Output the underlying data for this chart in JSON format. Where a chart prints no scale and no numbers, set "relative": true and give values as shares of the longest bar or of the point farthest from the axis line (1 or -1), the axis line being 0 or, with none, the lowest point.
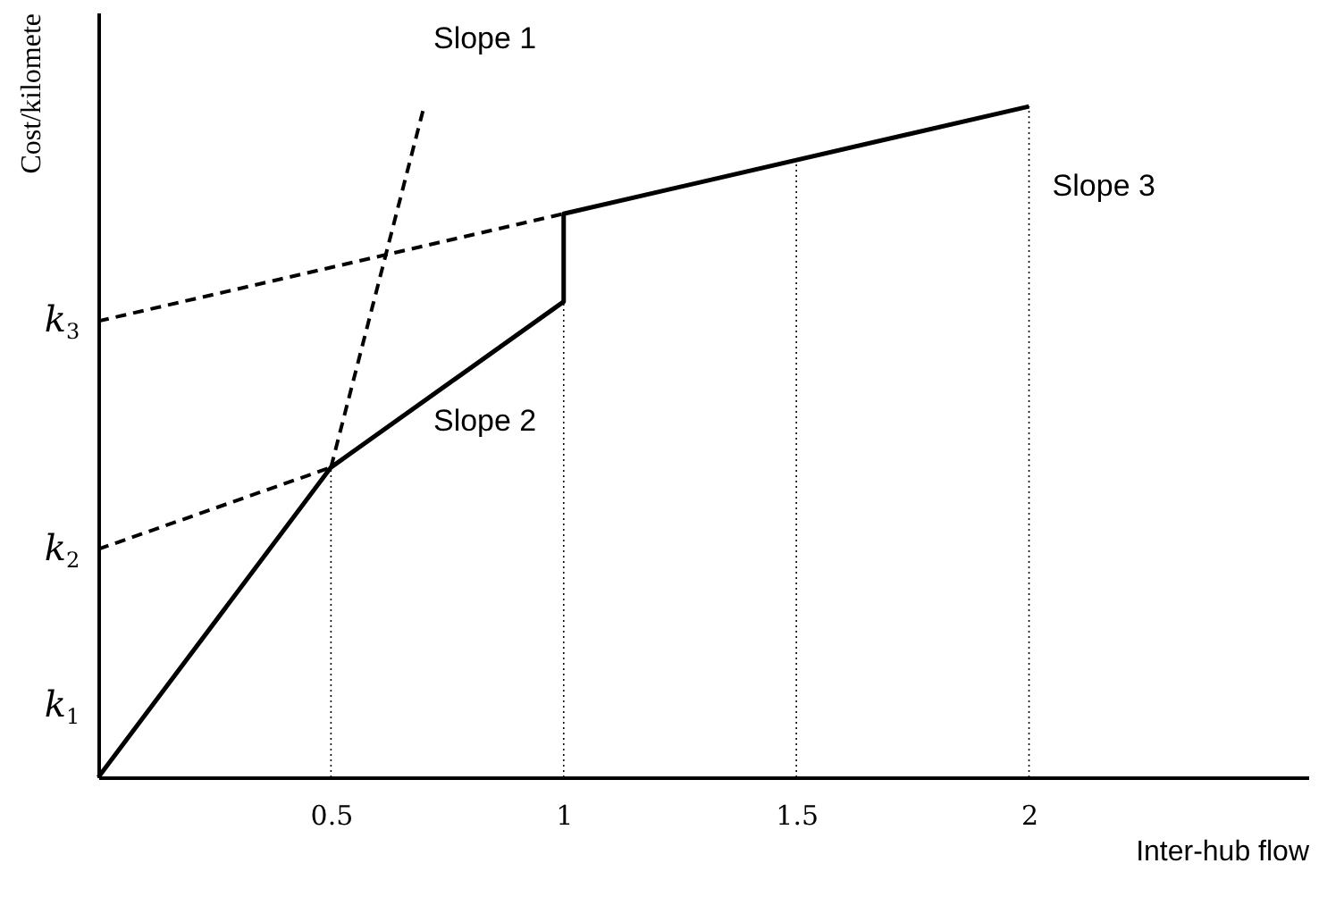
{
  "chart_data": {
    "type": "line",
    "relative": true,
    "xlabel": "Inter-hub flow",
    "ylabel": "Cost/kilomete",
    "xlim": [
      0,
      2.6
    ],
    "xticks": [
      0.5,
      {
        "value": 1,
        "label": "1"
      },
      1.5,
      {
        "value": 2,
        "label": "2"
      }
    ],
    "marker": "none",
    "series": [
      {
        "color": "#000000",
        "line_style": "solid",
        "x": [
          0,
          0.5,
          1,
          1,
          2
        ],
        "values": [
          0,
          0.462,
          0.709,
          0.84,
          1.0
        ]
      },
      {
        "color": "#000000",
        "line_style": "dashed",
        "x": [
          0.5,
          0.7
        ],
        "values": [
          0.462,
          1.0
        ]
      },
      {
        "color": "#000000",
        "line_style": "dashed",
        "x": [
          0,
          0.5
        ],
        "values": [
          0.34,
          0.462
        ]
      },
      {
        "color": "#000000",
        "line_style": "dashed",
        "x": [
          0,
          1
        ],
        "values": [
          0.68,
          0.84
        ]
      }
    ],
    "ref_lines": [
      {
        "axis": "x",
        "value": 0.5,
        "color": "#000000",
        "line_style": "dotted"
      },
      {
        "axis": "x",
        "value": 1,
        "color": "#000000",
        "line_style": "dotted"
      },
      {
        "axis": "x",
        "value": 1.5,
        "color": "#000000",
        "line_style": "dotted"
      },
      {
        "axis": "x",
        "value": 2,
        "color": "#000000",
        "line_style": "dotted"
      }
    ],
    "annotations": [
      "Slope 1",
      "Slope 2",
      "Slope 3",
      "k$_{1}$",
      "k$_{2}$",
      "k$_{3}$"
    ]
  }
}
